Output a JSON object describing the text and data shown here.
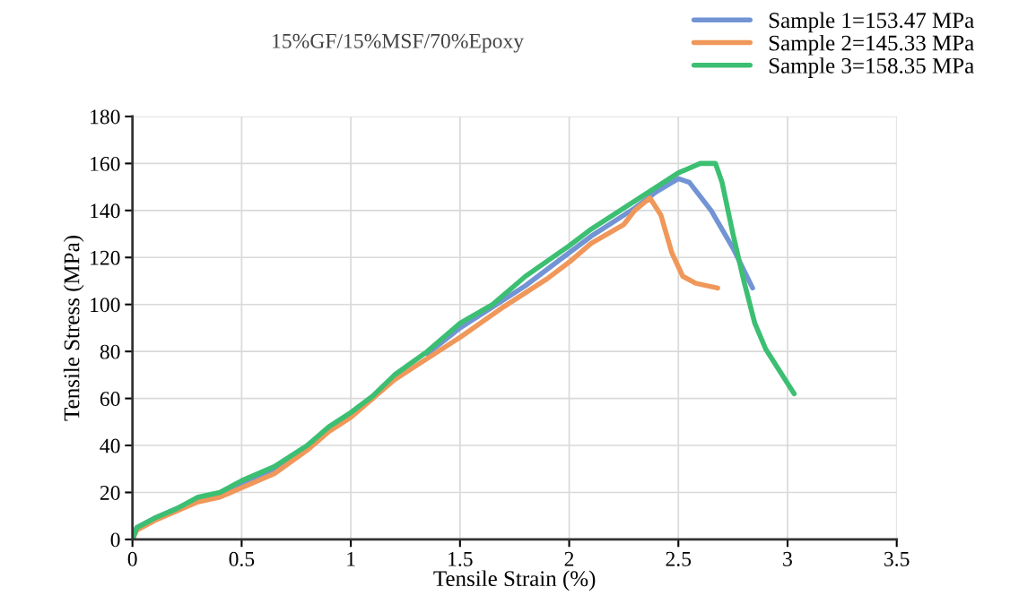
{
  "chart_data": {
    "type": "line",
    "title": "15%GF/15%MSF/70%Epoxy",
    "xlabel": "Tensile Strain (%)",
    "ylabel": "Tensile Stress (MPa)",
    "xlim": [
      0,
      3.5
    ],
    "xticks": [
      0,
      0.5,
      1,
      1.5,
      2,
      2.5,
      3,
      3.5
    ],
    "ylim": [
      0,
      180
    ],
    "yticks": [
      0,
      20,
      40,
      60,
      80,
      100,
      120,
      140,
      160,
      180
    ],
    "grid": true,
    "legend": "top right",
    "series": [
      {
        "name": "Sample 1=153.47 MPa",
        "color": "#7294d4",
        "x": [
          0,
          0.02,
          0.1,
          0.2,
          0.3,
          0.4,
          0.5,
          0.65,
          0.8,
          0.9,
          1.0,
          1.1,
          1.2,
          1.35,
          1.5,
          1.65,
          1.8,
          2.0,
          2.1,
          2.3,
          2.4,
          2.5,
          2.55,
          2.65,
          2.75,
          2.84
        ],
        "values": [
          0,
          5,
          9,
          13,
          17,
          19.5,
          24,
          30,
          39,
          47,
          53,
          60,
          null,
          79,
          90,
          99,
          108,
          122,
          129,
          141,
          148,
          153.5,
          152,
          140,
          124,
          107
        ]
      },
      {
        "name": "Sample 2=145.33 MPa",
        "color": "#f0975a",
        "x": [
          0,
          0.02,
          0.1,
          0.2,
          0.3,
          0.4,
          0.5,
          0.65,
          0.8,
          0.9,
          1.0,
          1.2,
          1.35,
          1.5,
          1.7,
          1.9,
          2.0,
          2.1,
          2.25,
          2.3,
          2.37,
          2.42,
          2.47,
          2.52,
          2.58,
          2.68
        ],
        "values": [
          0,
          4,
          8,
          12,
          16,
          18,
          22,
          28,
          38,
          46,
          52,
          68,
          77,
          86,
          99,
          111,
          118,
          126,
          134,
          140,
          145.3,
          138,
          122,
          112,
          109,
          107
        ]
      },
      {
        "name": "Sample 3=158.35 MPa",
        "color": "#3cbf72",
        "x": [
          0,
          0.02,
          0.1,
          0.2,
          0.3,
          0.4,
          0.5,
          0.65,
          0.8,
          0.9,
          1.0,
          1.1,
          1.2,
          1.35,
          1.5,
          1.65,
          1.8,
          2.0,
          2.1,
          2.3,
          2.5,
          2.6,
          2.67,
          2.7,
          2.75,
          2.8,
          2.85,
          2.9,
          3.03
        ],
        "values": [
          0,
          5,
          9,
          13,
          18,
          20,
          25,
          31,
          40,
          48,
          54,
          61,
          70,
          80,
          92,
          100,
          112,
          125,
          132,
          144,
          156,
          160,
          160,
          152,
          130,
          110,
          92,
          81,
          62
        ]
      }
    ]
  }
}
